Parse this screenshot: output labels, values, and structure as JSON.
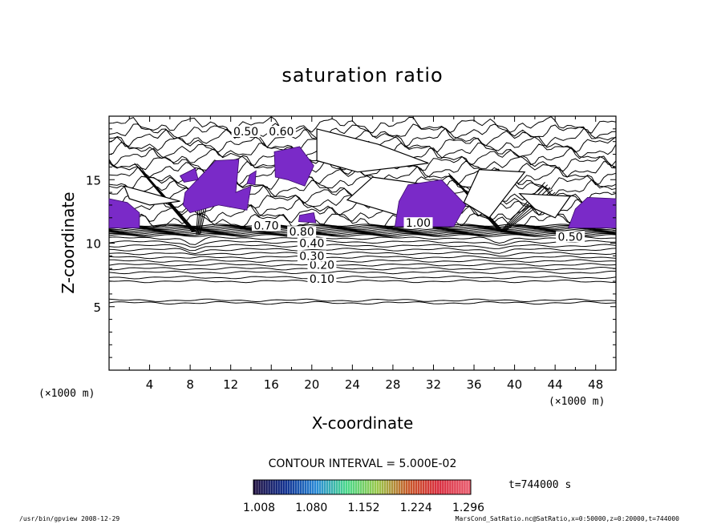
{
  "chart_data": {
    "type": "contour",
    "title": "saturation ratio",
    "xlabel": "X-coordinate",
    "ylabel": "Z-coordinate",
    "x_unit": "(×1000 m)",
    "z_unit": "(×1000 m)",
    "x_ticks": [
      4,
      8,
      12,
      16,
      20,
      24,
      28,
      32,
      36,
      40,
      44,
      48
    ],
    "z_ticks": [
      5,
      10,
      15
    ],
    "xlim": [
      0,
      50
    ],
    "ylim": [
      0,
      20
    ],
    "contour_interval_text": "CONTOUR INTERVAL = 5.000E-02",
    "contour_labels": [
      "0.10",
      "0.20",
      "0.30",
      "0.40",
      "0.50",
      "0.60",
      "0.70",
      "0.80",
      "1.00"
    ],
    "time_text": "t=744000 s",
    "colorbar": {
      "ticks": [
        "1.008",
        "1.080",
        "1.152",
        "1.224",
        "1.296"
      ],
      "colors": [
        "#1a0a3c",
        "#0a2a8c",
        "#2a8ad8",
        "#4ad88a",
        "#9ac84a",
        "#c85a2a",
        "#d8283a",
        "#e8586a"
      ]
    },
    "filled_region_color": "#7a2ac8",
    "footer_left": "/usr/bin/gpview   2008-12-29",
    "footer_right": "MarsCond_SatRatio.nc@SatRatio,x=0:50000,z=0:20000,t=744000"
  }
}
